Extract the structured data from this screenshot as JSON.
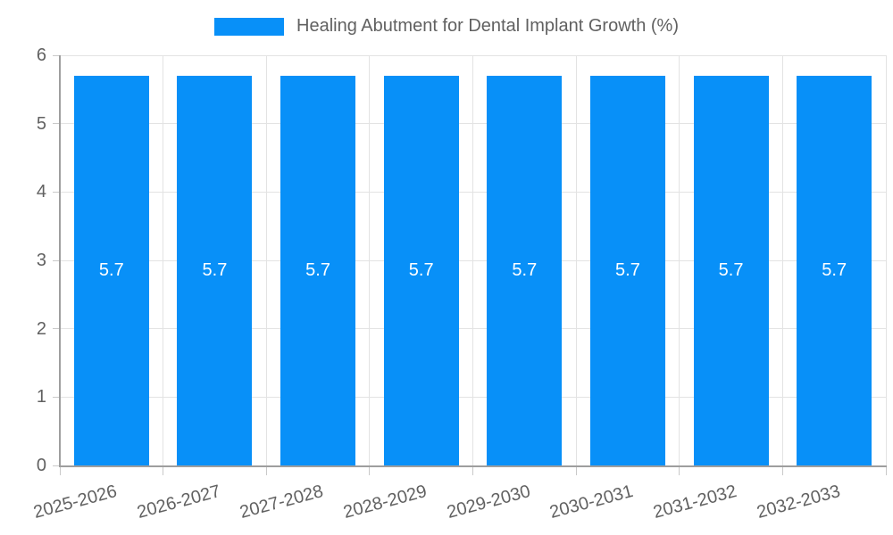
{
  "chart_data": {
    "type": "bar",
    "title": "Healing Abutment for Dental Implant Growth (%)",
    "legend_position": "top-center",
    "categories": [
      "2025-2026",
      "2026-2027",
      "2027-2028",
      "2028-2029",
      "2029-2030",
      "2030-2031",
      "2031-2032",
      "2032-2033"
    ],
    "series": [
      {
        "name": "Healing Abutment for Dental Implant Growth (%)",
        "values": [
          5.7,
          5.7,
          5.7,
          5.7,
          5.7,
          5.7,
          5.7,
          5.7
        ],
        "value_labels": [
          "5.7",
          "5.7",
          "5.7",
          "5.7",
          "5.7",
          "5.7",
          "5.7",
          "5.7"
        ]
      }
    ],
    "xlabel": "",
    "ylabel": "",
    "ylim": [
      0,
      6
    ],
    "yticks": [
      "0",
      "1",
      "2",
      "3",
      "4",
      "5",
      "6"
    ],
    "grid": true,
    "colors": {
      "bar": "#0890F8",
      "bar_label": "#FFFFFF",
      "tick_text": "#616161",
      "grid_line": "#E3E3E3",
      "axis_line": "#9E9E9E"
    }
  }
}
